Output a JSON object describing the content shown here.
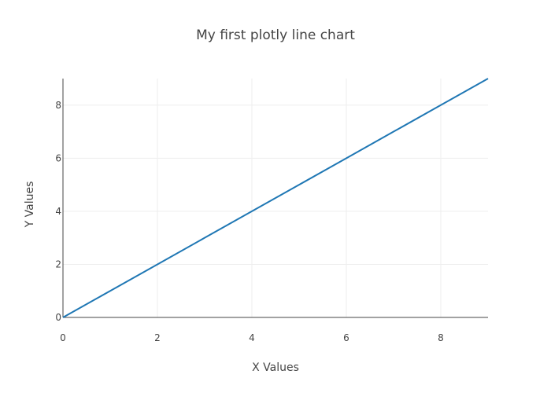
{
  "chart_data": {
    "type": "line",
    "title": "My first plotly line chart",
    "xlabel": "X Values",
    "ylabel": "Y Values",
    "xlim": [
      0,
      9
    ],
    "ylim": [
      0,
      9
    ],
    "x_ticks": [
      0,
      2,
      4,
      6,
      8
    ],
    "y_ticks": [
      0,
      2,
      4,
      6,
      8
    ],
    "grid": true,
    "line_color": "#1f77b4",
    "series": [
      {
        "x": [
          0,
          1,
          2,
          3,
          4,
          5,
          6,
          7,
          8,
          9
        ],
        "y": [
          0,
          1,
          2,
          3,
          4,
          5,
          6,
          7,
          8,
          9
        ]
      }
    ]
  }
}
